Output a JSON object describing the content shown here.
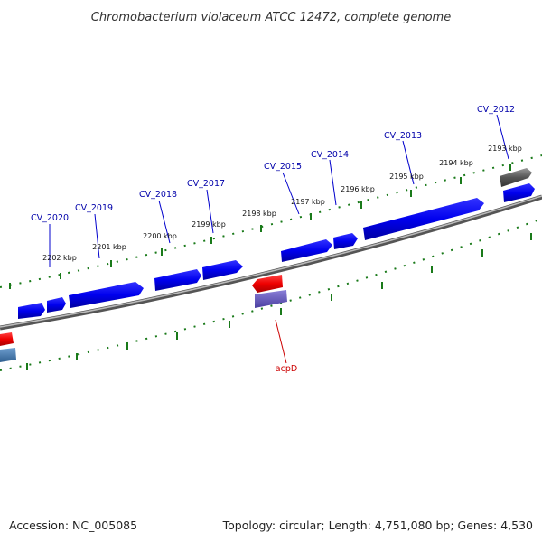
{
  "title": "Chromobacterium violaceum ATCC 12472, complete genome",
  "footer": {
    "accession": "Accession: NC_005085",
    "summary": "Topology: circular; Length: 4,751,080 bp; Genes: 4,530"
  },
  "scale_labels": [
    "2202 kbp",
    "2201 kbp",
    "2200 kbp",
    "2199 kbp",
    "2198 kbp",
    "2197 kbp",
    "2196 kbp",
    "2195 kbp",
    "2194 kbp",
    "2193 kbp"
  ],
  "gene_labels": [
    "CV_2020",
    "CV_2019",
    "CV_2018",
    "CV_2017",
    "CV_2015",
    "CV_2014",
    "CV_2013",
    "CV_2012"
  ],
  "rna_labels": [
    "acpD"
  ],
  "colors": {
    "forward_gene": "#0000ee",
    "rna_gene": "#ee0000",
    "pseudo_gene": "#555555",
    "backbone": "#777777",
    "ticks": "#1a7a1a",
    "label_blue": "#0000aa",
    "label_red": "#cc0000"
  }
}
